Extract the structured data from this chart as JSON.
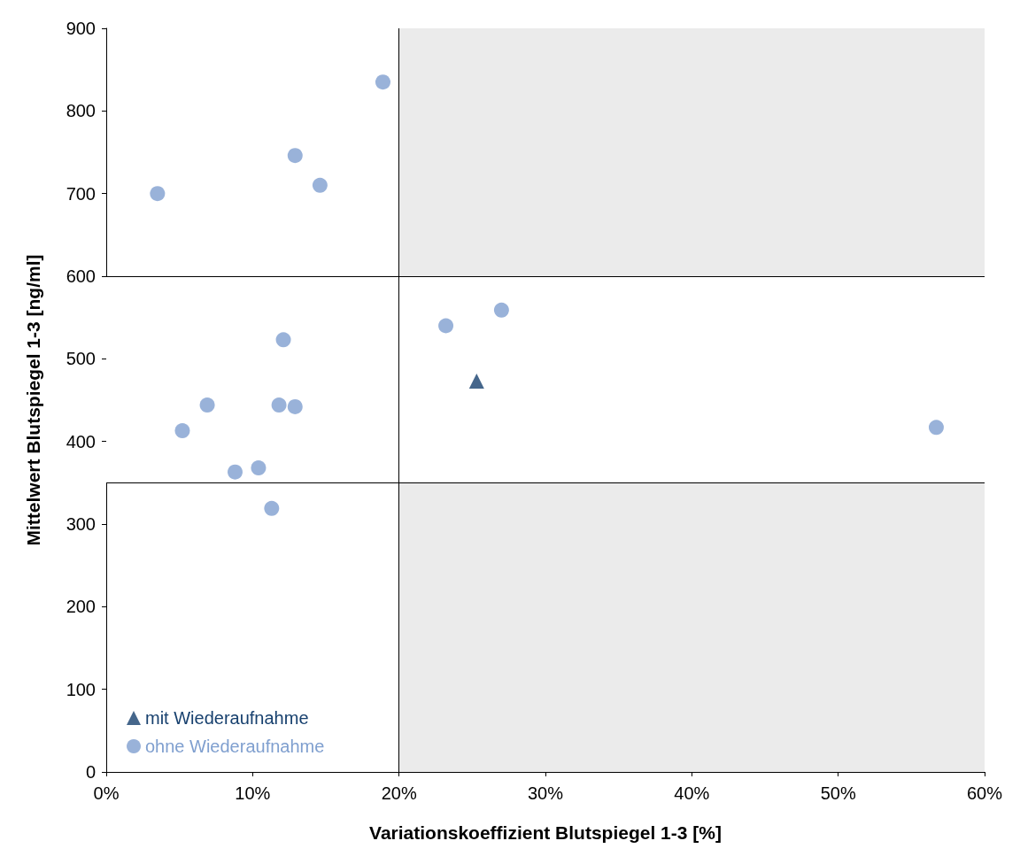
{
  "chart_data": {
    "type": "scatter",
    "xlabel": "Variationskoeffizient Blutspiegel 1-3 [%]",
    "ylabel": "Mittelwert Blutspiegel 1-3 [ng/ml]",
    "xlim": [
      0,
      60
    ],
    "xticks": [
      {
        "value": 0,
        "label": "0%"
      },
      {
        "value": 10,
        "label": "10%"
      },
      {
        "value": 20,
        "label": "20%"
      },
      {
        "value": 30,
        "label": "30%"
      },
      {
        "value": 40,
        "label": "40%"
      },
      {
        "value": 50,
        "label": "50%"
      },
      {
        "value": 60,
        "label": "60%"
      }
    ],
    "ylim": [
      0,
      900
    ],
    "yticks": [
      0,
      100,
      200,
      300,
      400,
      500,
      600,
      700,
      800,
      900
    ],
    "series": [
      {
        "name": "mit Wiederaufnahme",
        "color": "#17406e",
        "marker": "triangle",
        "x": [
          25.3
        ],
        "values": [
          473
        ]
      },
      {
        "name": "ohne Wiederaufnahme",
        "color": "#7f9fcf",
        "marker": "circle",
        "x": [
          3.5,
          12.9,
          14.6,
          18.9,
          23.2,
          27.0,
          12.1,
          6.9,
          5.2,
          11.8,
          12.9,
          8.8,
          10.4,
          11.3,
          56.7
        ],
        "values": [
          700,
          746,
          710,
          835,
          540,
          559,
          523,
          444,
          413,
          444,
          442,
          363,
          368,
          319,
          417
        ]
      }
    ],
    "bands": [
      {
        "axis": "x",
        "from": 20,
        "to": 60,
        "color": "#ebebeb"
      },
      {
        "axis": "y",
        "from": 350,
        "to": 600,
        "color": "#ffffff"
      }
    ],
    "ref_lines": [
      {
        "axis": "y",
        "value": 600
      },
      {
        "axis": "y",
        "value": 350
      },
      {
        "axis": "x",
        "value": 20
      }
    ],
    "grid": false,
    "legend": "bottom left"
  }
}
